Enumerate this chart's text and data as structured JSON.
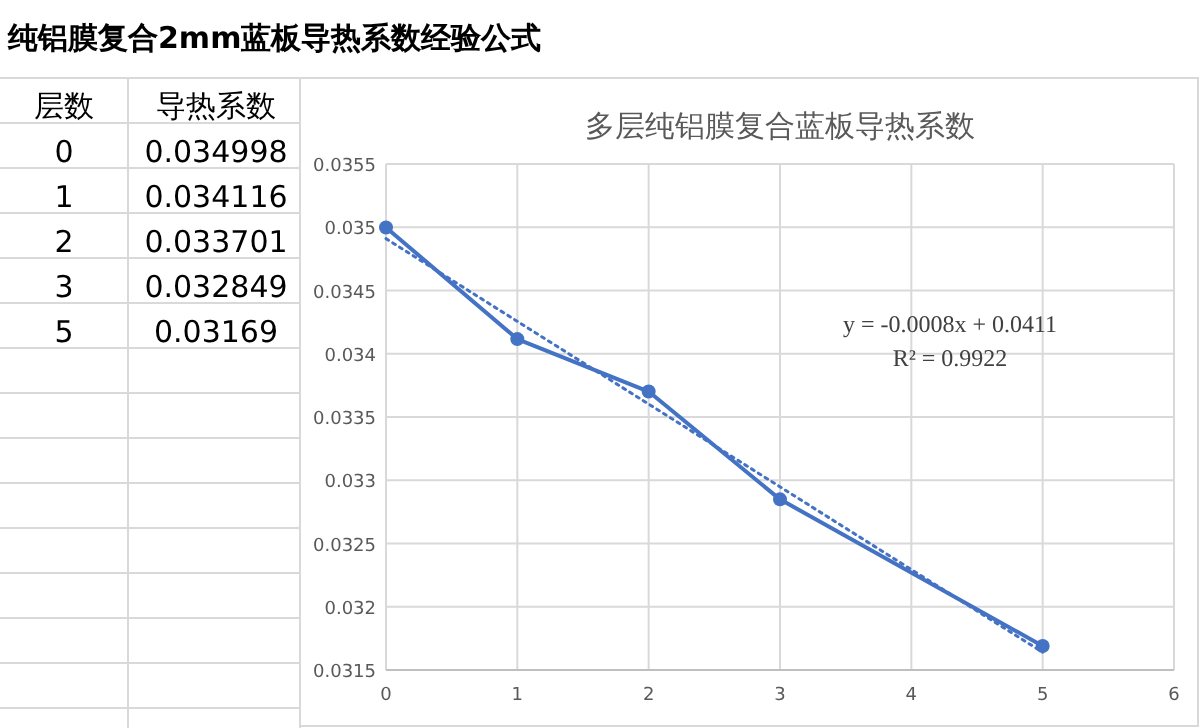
{
  "chart_data": {
    "type": "line",
    "title": "纯铝膜复合2mm蓝板导热系数经验公式",
    "subtitle": "多层纯铝膜复合蓝板导热系数",
    "annotations": [
      "层数",
      "导热系数",
      "0",
      "0.034998",
      "1",
      "0.034116",
      "2",
      "0.033701",
      "3",
      "0.032849",
      "5",
      "0.03169",
      "y = -0.0008x + 0.0411",
      "R² = 0.9922"
    ],
    "x": [
      0,
      1,
      2,
      3,
      5
    ],
    "series": [
      {
        "color": "#4472c4",
        "values": [
          0.034998,
          0.034116,
          0.033701,
          0.032849,
          0.03169
        ],
        "marker": "circle",
        "line_style": "solid"
      },
      {
        "x": [
          0,
          5
        ],
        "color": "#4472c4",
        "values": [
          0.03491,
          0.03164
        ],
        "marker": "none",
        "line_style": "dotted"
      }
    ],
    "xlim": [
      0,
      6
    ],
    "xticks": [
      0,
      1,
      2,
      3,
      4,
      5,
      6
    ],
    "ylim": [
      0.0315,
      0.0355
    ],
    "yticks": [
      0.0315,
      0.032,
      0.0325,
      0.033,
      0.0335,
      0.034,
      0.0345,
      0.035,
      0.0355
    ],
    "grid": true
  }
}
